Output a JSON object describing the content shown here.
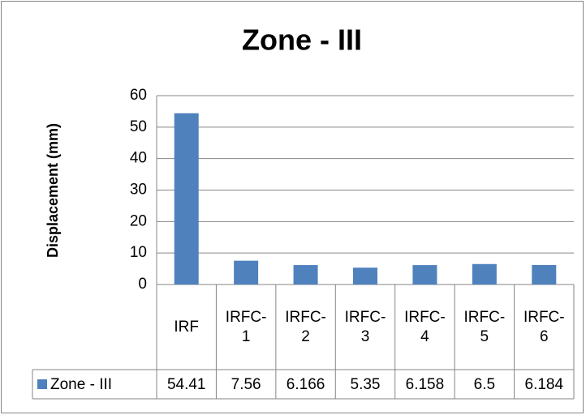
{
  "chart_data": {
    "type": "bar",
    "title": "Zone - III",
    "y_label": "Displacement (mm)",
    "categories": [
      "IRF",
      "IRFC-1",
      "IRFC-2",
      "IRFC-3",
      "IRFC-4",
      "IRFC-5",
      "IRFC-6"
    ],
    "series": [
      {
        "name": "Zone - III",
        "color": "#4f81bd",
        "values": [
          54.41,
          7.56,
          6.166,
          5.35,
          6.158,
          6.5,
          6.184
        ]
      }
    ],
    "ylim": [
      0,
      60
    ],
    "yticks": [
      0,
      10,
      20,
      30,
      40,
      50,
      60
    ],
    "grid": true
  }
}
